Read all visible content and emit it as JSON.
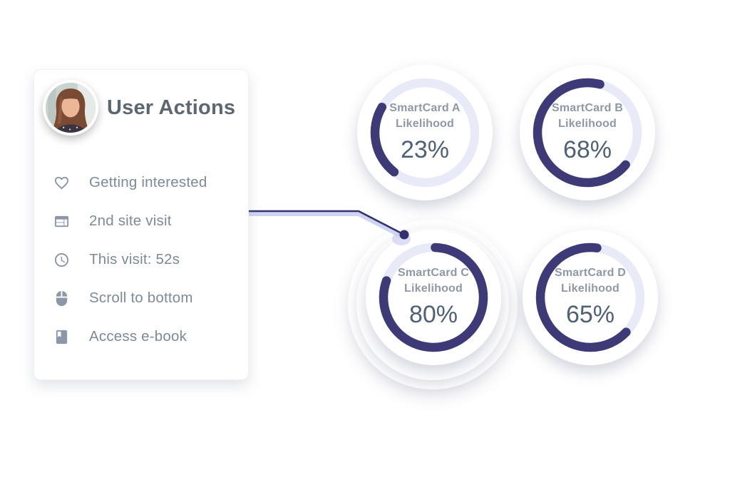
{
  "user_card": {
    "title": "User Actions",
    "avatar": "woman-portrait-photo",
    "items": [
      {
        "icon": "heart-icon",
        "label": "Getting interested"
      },
      {
        "icon": "browser-window-icon",
        "label": "2nd site visit"
      },
      {
        "icon": "clock-icon",
        "label": "This visit: 52s"
      },
      {
        "icon": "mouse-icon",
        "label": "Scroll to bottom"
      },
      {
        "icon": "book-icon",
        "label": "Access e-book"
      }
    ]
  },
  "gauges": [
    {
      "id": "A",
      "title": "SmartCard A",
      "subtitle": "Likelihood",
      "percent": 23,
      "percent_label": "23%",
      "start_angle": 218,
      "highlighted": false
    },
    {
      "id": "B",
      "title": "SmartCard B",
      "subtitle": "Likelihood",
      "percent": 68,
      "percent_label": "68%",
      "start_angle": 130,
      "highlighted": false
    },
    {
      "id": "C",
      "title": "SmartCard C",
      "subtitle": "Likelihood",
      "percent": 80,
      "percent_label": "80%",
      "start_angle": 2,
      "highlighted": true
    },
    {
      "id": "D",
      "title": "SmartCard D",
      "subtitle": "Likelihood",
      "percent": 65,
      "percent_label": "65%",
      "start_angle": 134,
      "highlighted": false
    }
  ],
  "connector": {
    "from": "user-actions-card",
    "to": "gauge-smartcard-c"
  },
  "colors": {
    "arc": "#3e3a78",
    "track": "#e8eaf7",
    "gauge_label": "#8f98a6",
    "percent": "#4f6177",
    "list_text": "#7d8a99",
    "icon": "#8c98a8",
    "title": "#5d6772",
    "connector": "#34316e",
    "connector_glow": "#c8ccee",
    "card_bg": "#ffffff",
    "page_bg": "#ffffff"
  }
}
